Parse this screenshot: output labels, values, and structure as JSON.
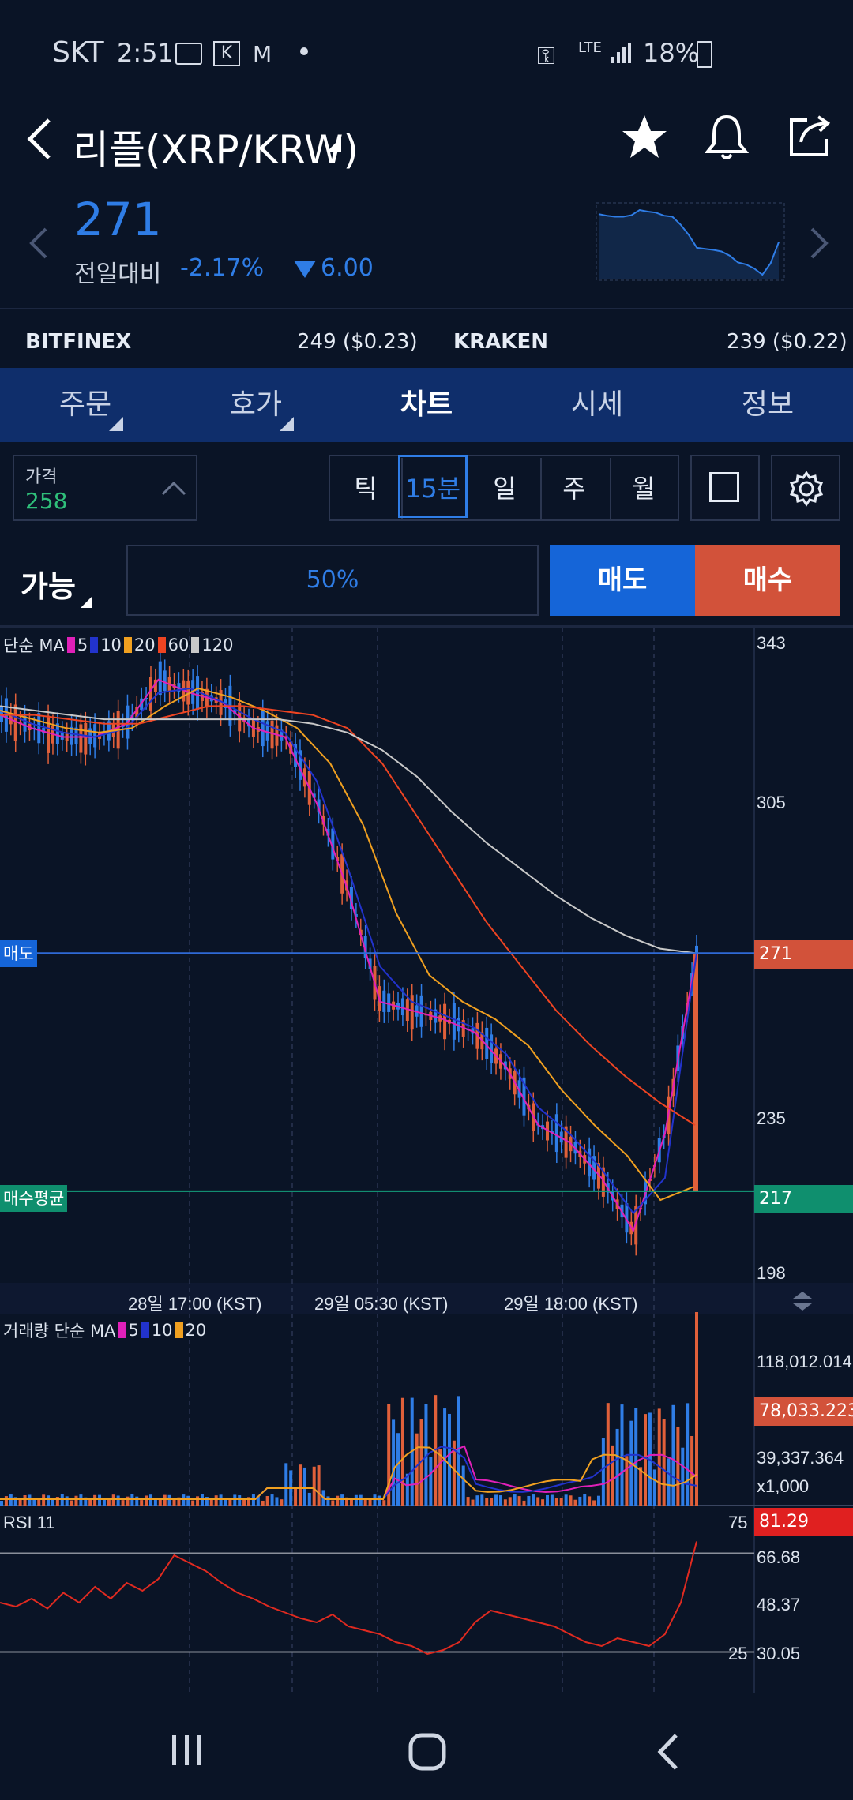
{
  "status": {
    "carrier": "SKT",
    "time": "2:51",
    "battery": "18%",
    "network": "LTE"
  },
  "header": {
    "title": "리플(XRP/KRW)",
    "price": "271",
    "compare_label": "전일대비",
    "change_pct": "-2.17%",
    "change_abs": "6.00"
  },
  "exchanges": [
    {
      "name": "BITFINEX",
      "value": "249 ($0.23)"
    },
    {
      "name": "KRAKEN",
      "value": "239 ($0.22)"
    }
  ],
  "tabs": [
    "주문",
    "호가",
    "차트",
    "시세",
    "정보"
  ],
  "active_tab": "차트",
  "price_box": {
    "label": "가격",
    "value": "258"
  },
  "intervals": [
    "틱",
    "15분",
    "일",
    "주",
    "월"
  ],
  "active_interval": "15분",
  "order": {
    "available_label": "가능",
    "percent": "50%",
    "sell_label": "매도",
    "buy_label": "매수"
  },
  "colors": {
    "ma5": "#e020b8",
    "ma10": "#2233cc",
    "ma20": "#f0a020",
    "ma60": "#ee4422",
    "ma120": "#c8c8c8",
    "up": "#e0603a",
    "down": "#2f7de6",
    "sell_tag": "#d2523a",
    "buy_tag": "#0f8f6e",
    "rsi_tag": "#e02020"
  },
  "legend": {
    "price": {
      "label": "단순 MA",
      "items": [
        "5",
        "10",
        "20",
        "60",
        "120"
      ]
    },
    "volume": {
      "label": "거래량 단순 MA",
      "items": [
        "5",
        "10",
        "20"
      ]
    },
    "rsi": {
      "label": "RSI 11"
    }
  },
  "chart_data": {
    "type": "line",
    "title": "",
    "price_ticks": [
      "343",
      "305",
      "271",
      "235",
      "217",
      "198"
    ],
    "x_ticks": [
      "28일 17:00 (KST)",
      "29일 05:30 (KST)",
      "29일 18:00 (KST)"
    ],
    "ylim": [
      198,
      343
    ],
    "series": [
      {
        "name": "5",
        "values": [
          325,
          322,
          320,
          320,
          323,
          333,
          330,
          328,
          322,
          320,
          305,
          285,
          260,
          258,
          256,
          253,
          245,
          232,
          228,
          220,
          208,
          230,
          271
        ]
      },
      {
        "name": "10",
        "values": [
          326,
          323,
          321,
          320,
          322,
          330,
          331,
          328,
          324,
          321,
          310,
          290,
          268,
          260,
          257,
          254,
          248,
          236,
          230,
          222,
          212,
          220,
          271
        ]
      },
      {
        "name": "20",
        "values": [
          326,
          324,
          322,
          321,
          322,
          327,
          331,
          329,
          326,
          322,
          314,
          300,
          280,
          266,
          260,
          256,
          250,
          240,
          232,
          225,
          215,
          218
        ]
      },
      {
        "name": "60",
        "values": [
          325,
          325,
          324,
          323,
          323,
          325,
          327,
          327,
          326,
          325,
          322,
          314,
          302,
          290,
          278,
          268,
          258,
          250,
          243,
          237,
          232
        ]
      },
      {
        "name": "120",
        "values": [
          327,
          326,
          325,
          324,
          324,
          324,
          324,
          324,
          324,
          323,
          321,
          317,
          311,
          303,
          296,
          290,
          284,
          279,
          275,
          272,
          271
        ]
      }
    ],
    "markers": [
      {
        "label": "매도",
        "value": "271"
      },
      {
        "label": "매수평균",
        "value": "217"
      }
    ],
    "volume": {
      "ticks": [
        "118,012.014",
        "78,033.223",
        "39,337.364"
      ],
      "unit": "x1,000"
    },
    "rsi": {
      "levels": [
        "75",
        "25"
      ],
      "ticks": [
        "81.29",
        "66.68",
        "48.37",
        "30.05"
      ],
      "values": [
        50,
        48,
        52,
        47,
        55,
        50,
        58,
        52,
        60,
        56,
        62,
        74,
        70,
        66,
        60,
        55,
        52,
        48,
        45,
        42,
        40,
        44,
        38,
        36,
        34,
        30,
        28,
        24,
        26,
        30,
        40,
        46,
        44,
        42,
        40,
        38,
        34,
        30,
        28,
        32,
        30,
        28,
        34,
        50,
        81
      ]
    }
  }
}
